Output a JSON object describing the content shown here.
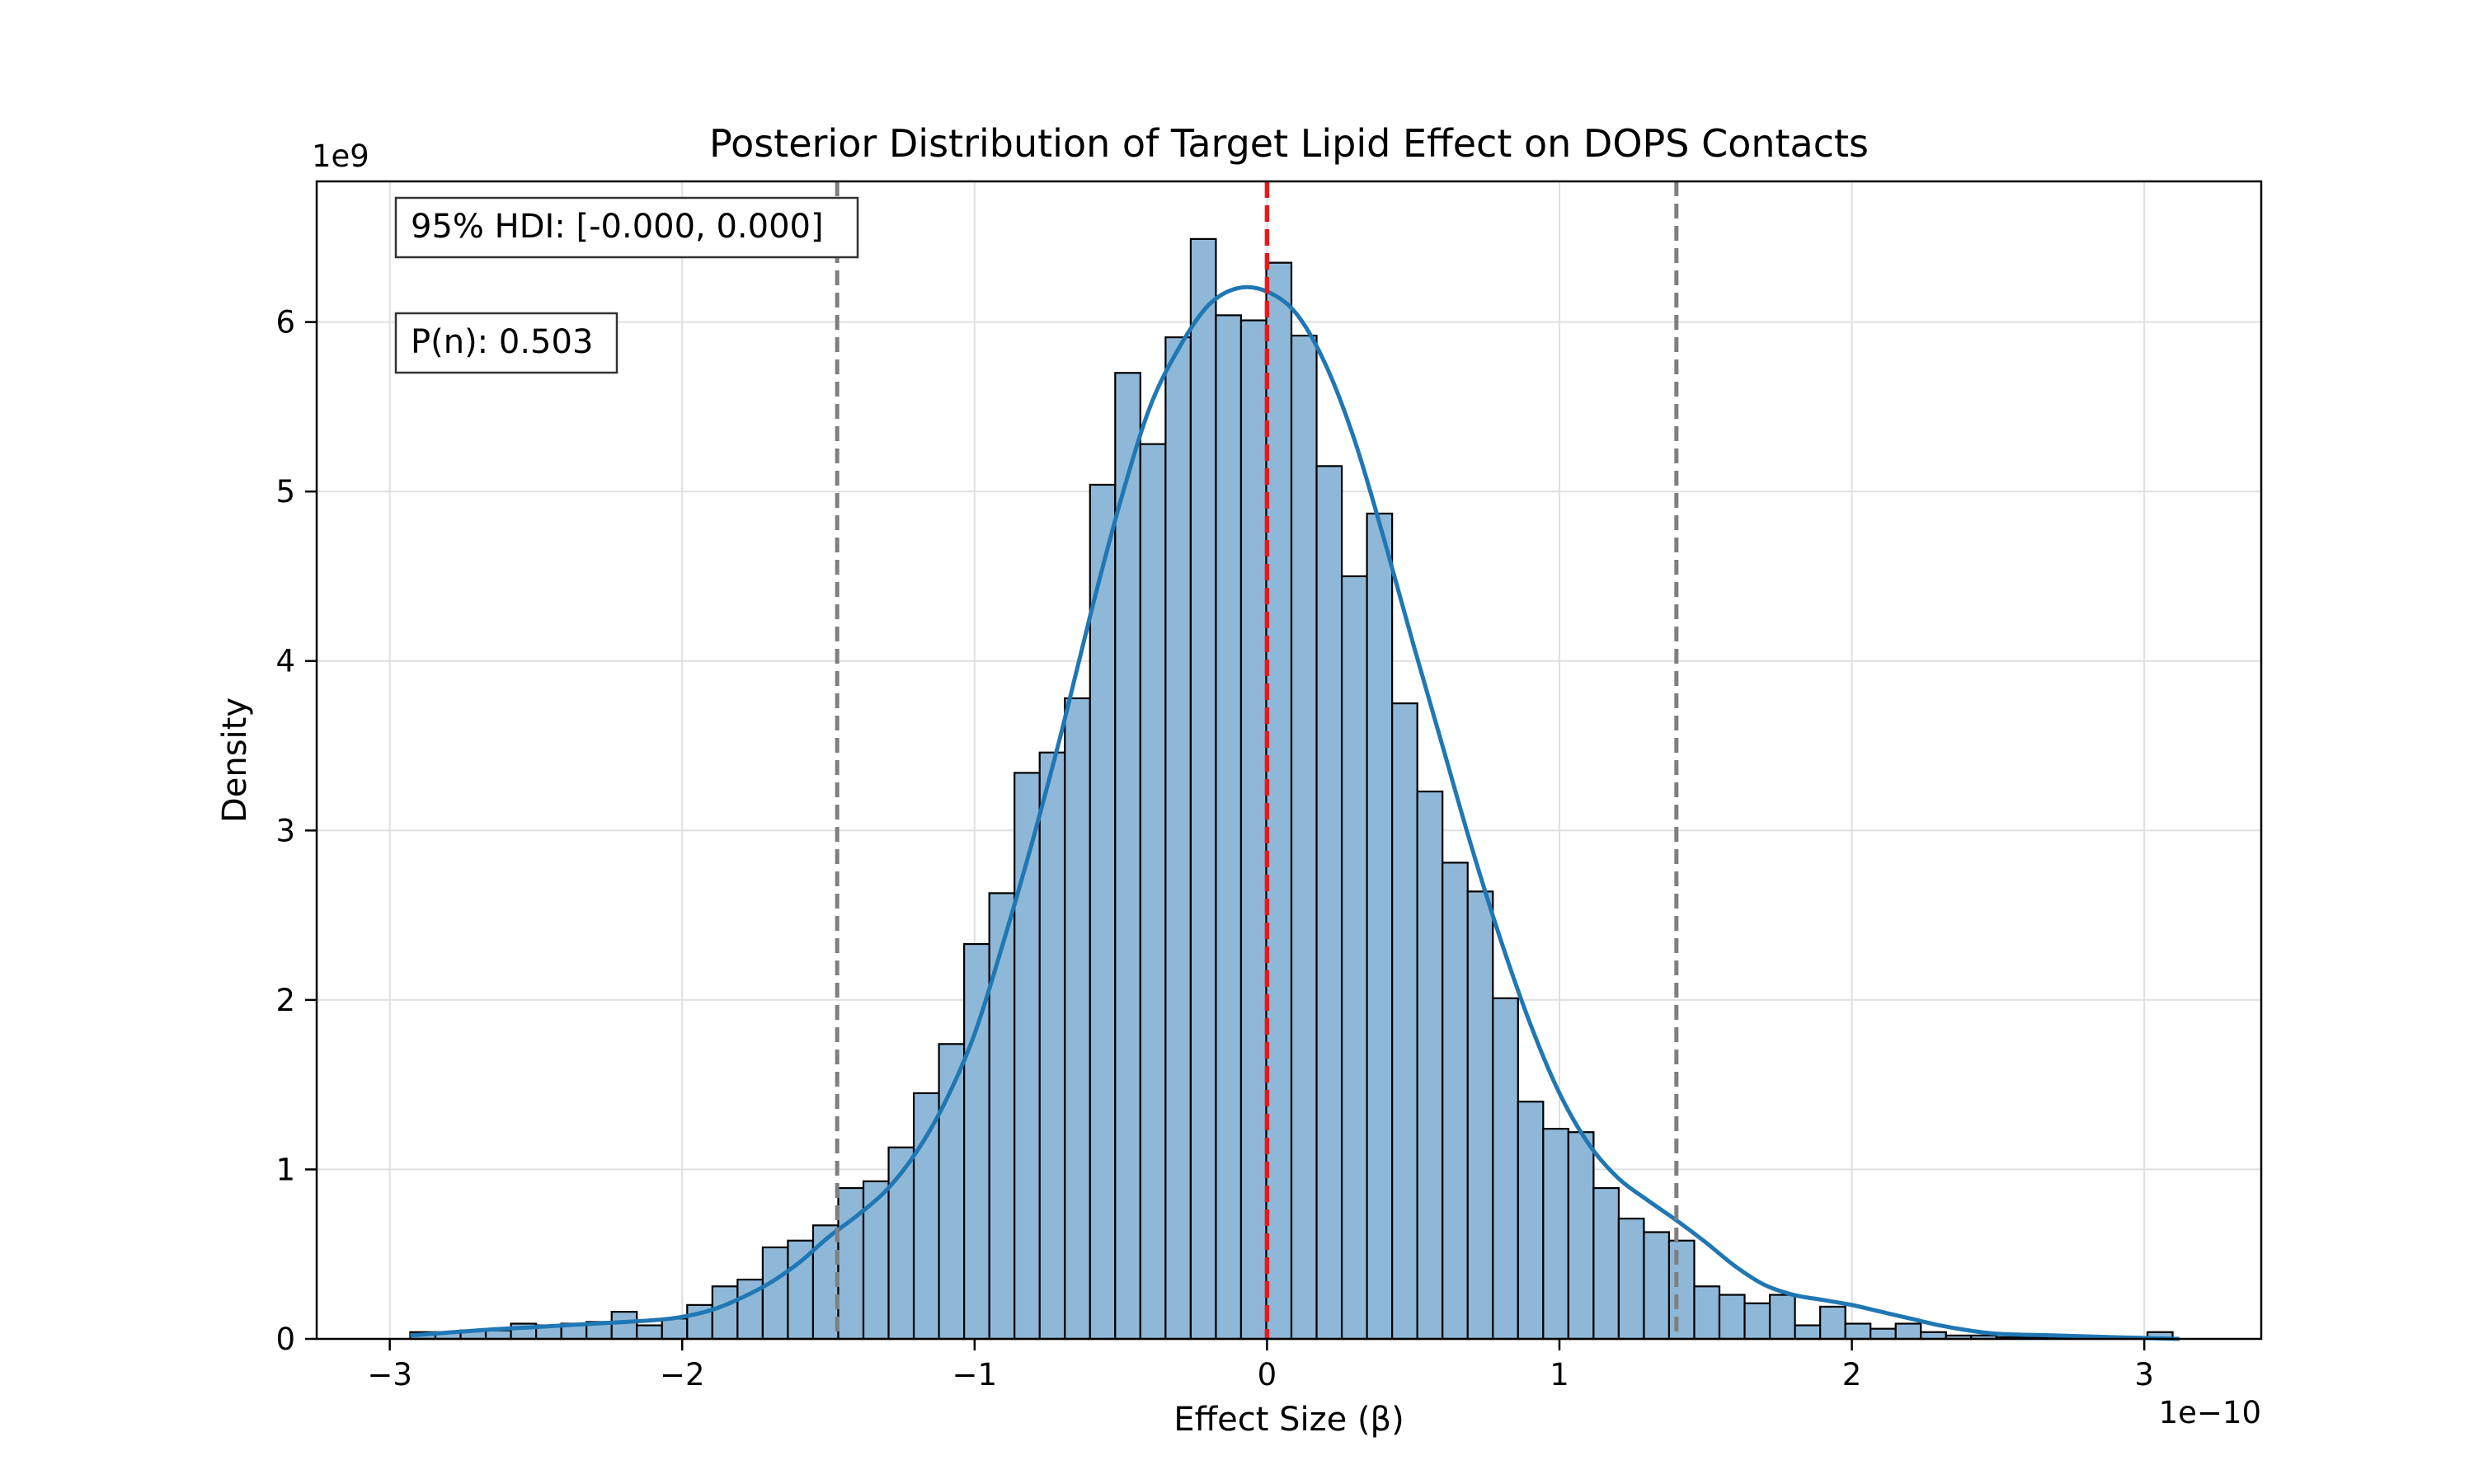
{
  "chart_data": {
    "type": "bar",
    "title": "Posterior Distribution of Target Lipid Effect on DOPS Contacts",
    "xlabel": "Effect Size (β)",
    "ylabel": "Density",
    "x_offset_label": "1e−10",
    "y_offset_label": "1e9",
    "xlim": [
      -3.25,
      3.4
    ],
    "ylim": [
      0,
      6.83
    ],
    "x_ticks": [
      -3,
      -2,
      -1,
      0,
      1,
      2,
      3
    ],
    "x_tick_labels": [
      "−3",
      "−2",
      "−1",
      "0",
      "1",
      "2",
      "3"
    ],
    "y_ticks": [
      0,
      1,
      2,
      3,
      4,
      5,
      6
    ],
    "y_tick_labels": [
      "0",
      "1",
      "2",
      "3",
      "4",
      "5",
      "6"
    ],
    "grid": true,
    "bin_start": -2.93,
    "bin_width": 0.0861,
    "values": [
      0.04,
      0.04,
      0.05,
      0.05,
      0.09,
      0.08,
      0.09,
      0.1,
      0.16,
      0.08,
      0.12,
      0.2,
      0.31,
      0.35,
      0.54,
      0.58,
      0.67,
      0.89,
      0.93,
      1.13,
      1.45,
      1.74,
      2.33,
      2.63,
      3.34,
      3.46,
      3.78,
      5.04,
      5.7,
      5.28,
      5.91,
      6.49,
      6.04,
      6.01,
      6.35,
      5.92,
      5.15,
      4.5,
      4.87,
      3.75,
      3.23,
      2.81,
      2.64,
      2.01,
      1.4,
      1.24,
      1.22,
      0.89,
      0.71,
      0.63,
      0.58,
      0.31,
      0.26,
      0.21,
      0.26,
      0.08,
      0.19,
      0.09,
      0.06,
      0.09,
      0.04,
      0.02,
      0.02,
      0.01,
      0.01,
      0.01,
      0.01,
      0.01,
      0.01,
      0.04
    ],
    "kde_x": [
      -2.93,
      -2.7,
      -2.5,
      -2.3,
      -2.1,
      -2.0,
      -1.9,
      -1.8,
      -1.7,
      -1.6,
      -1.5,
      -1.4,
      -1.3,
      -1.2,
      -1.1,
      -1.0,
      -0.9,
      -0.8,
      -0.7,
      -0.6,
      -0.5,
      -0.4,
      -0.3,
      -0.2,
      -0.1,
      0.0,
      0.1,
      0.2,
      0.3,
      0.4,
      0.5,
      0.6,
      0.7,
      0.8,
      0.9,
      1.0,
      1.1,
      1.2,
      1.3,
      1.4,
      1.5,
      1.6,
      1.7,
      1.8,
      1.9,
      2.0,
      2.1,
      2.2,
      2.3,
      2.4,
      2.5,
      2.7,
      2.9,
      3.12
    ],
    "kde_y": [
      0.02,
      0.05,
      0.07,
      0.09,
      0.11,
      0.13,
      0.17,
      0.24,
      0.33,
      0.45,
      0.6,
      0.73,
      0.88,
      1.1,
      1.4,
      1.8,
      2.35,
      2.95,
      3.6,
      4.3,
      4.95,
      5.5,
      5.85,
      6.1,
      6.2,
      6.18,
      6.05,
      5.75,
      5.3,
      4.72,
      4.1,
      3.5,
      2.9,
      2.35,
      1.86,
      1.45,
      1.15,
      0.95,
      0.82,
      0.7,
      0.57,
      0.43,
      0.32,
      0.26,
      0.23,
      0.2,
      0.16,
      0.12,
      0.08,
      0.05,
      0.03,
      0.02,
      0.01,
      0.0
    ],
    "vlines": [
      {
        "x": 0.0,
        "color": "#e41a1c",
        "style": "dashed"
      },
      {
        "x": -1.47,
        "color": "#7f7f7f",
        "style": "dashed"
      },
      {
        "x": 1.4,
        "color": "#7f7f7f",
        "style": "dashed"
      }
    ],
    "annotations": [
      {
        "text": "95% HDI: [-0.000, 0.000]"
      },
      {
        "text": "P(n): 0.503"
      }
    ],
    "colors": {
      "bar_fill": "#8fb8d8",
      "bar_edge": "#000000",
      "kde": "#1f77b4",
      "grid": "#e0e0e0"
    }
  }
}
